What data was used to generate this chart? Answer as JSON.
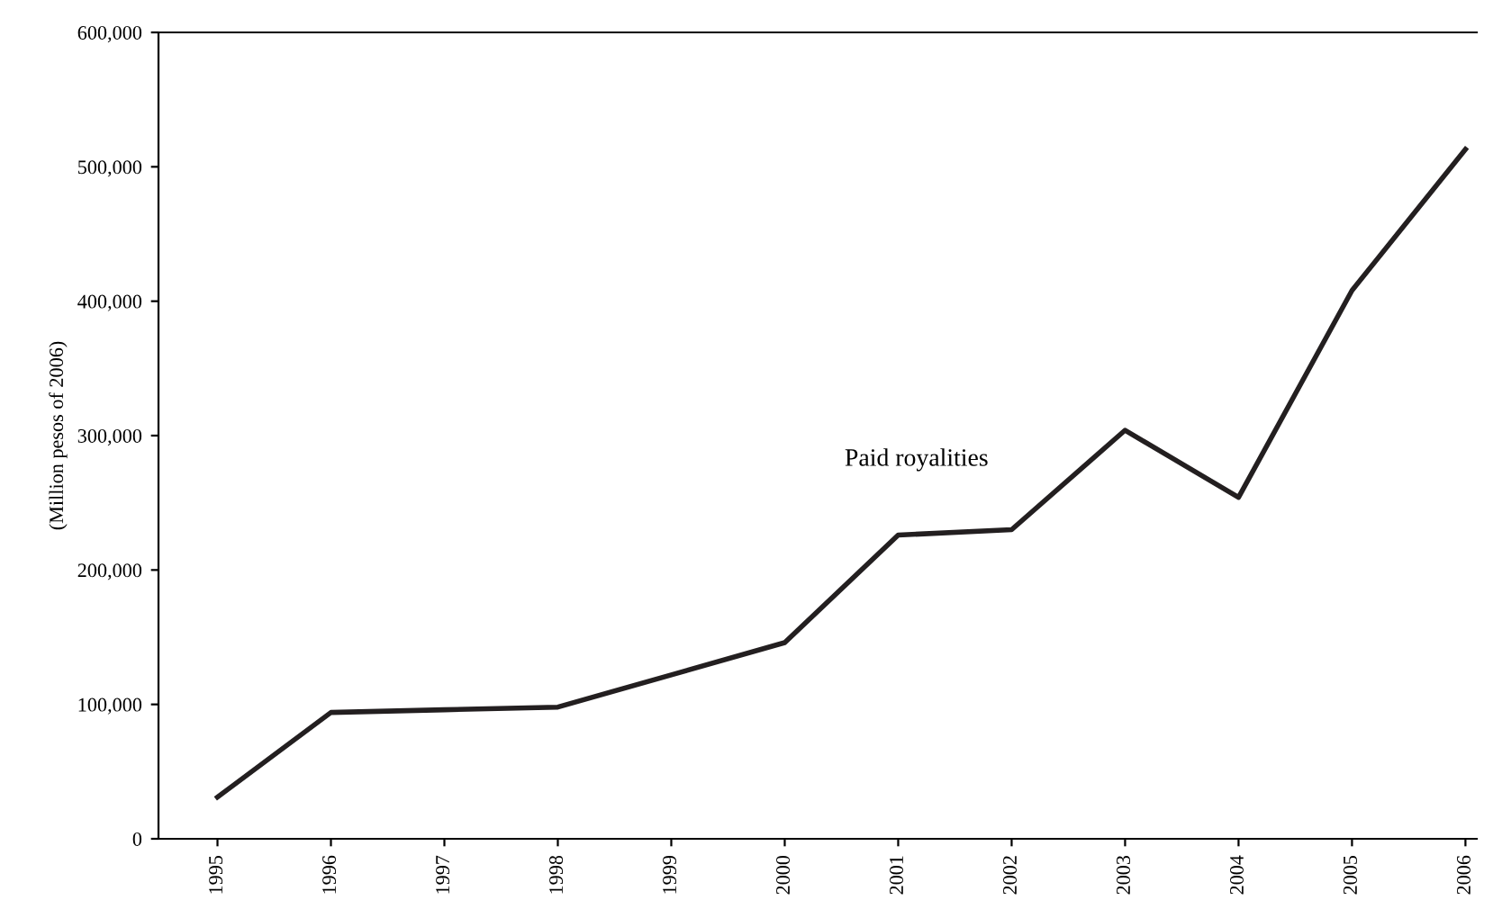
{
  "chart_data": {
    "type": "line",
    "ylabel": "(Million pesos of 2006)",
    "categories": [
      "1995",
      "1996",
      "1997",
      "1998",
      "1999",
      "2000",
      "2001",
      "2002",
      "2003",
      "2004",
      "2005",
      "2006"
    ],
    "series": [
      {
        "name": "Paid royalities",
        "color": "#231f20",
        "values": [
          31000,
          94000,
          96000,
          98000,
          122000,
          146000,
          226000,
          230000,
          304000,
          254000,
          408000,
          513000
        ]
      }
    ],
    "ylim": [
      0,
      600000
    ],
    "yticks": [
      {
        "value": 0,
        "label": "0"
      },
      {
        "value": 100000,
        "label": "100,000"
      },
      {
        "value": 200000,
        "label": "200,000"
      },
      {
        "value": 300000,
        "label": "300,000"
      },
      {
        "value": 400000,
        "label": "400,000"
      },
      {
        "value": 500000,
        "label": "500,000"
      },
      {
        "value": 600000,
        "label": "600,000"
      }
    ],
    "grid": false,
    "legend": false,
    "marker": "none",
    "line_style": "solid"
  }
}
